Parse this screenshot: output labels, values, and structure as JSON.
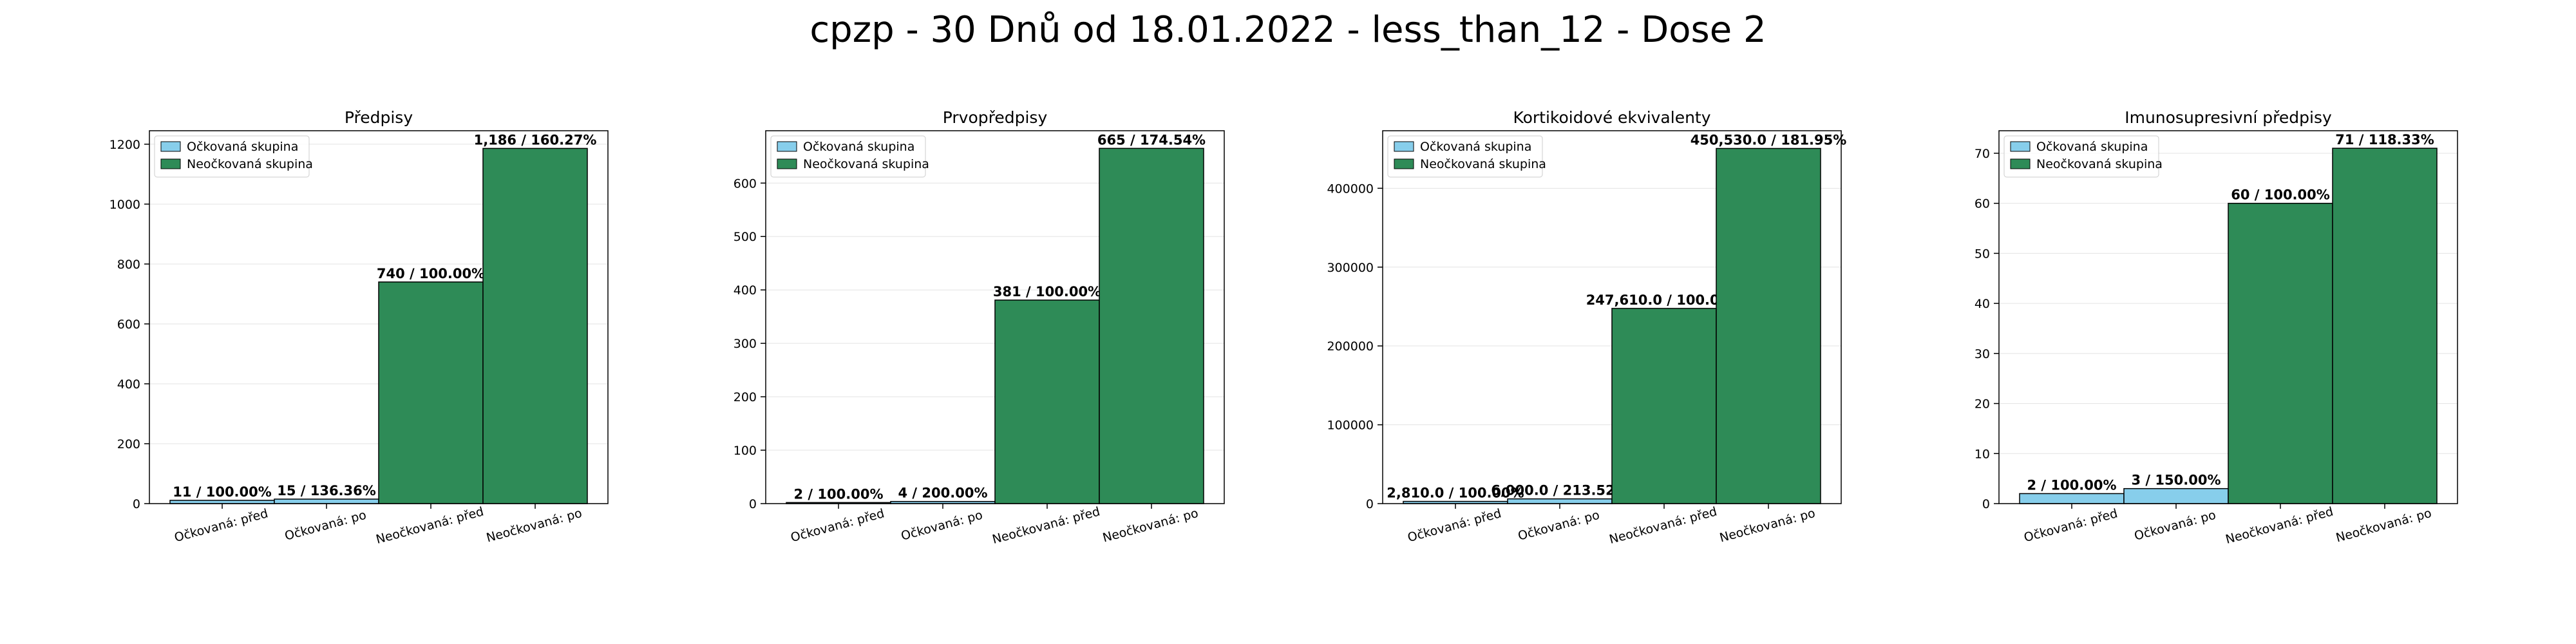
{
  "figure": {
    "suptitle": "cpzp - 30 Dnů od 18.01.2022 - less_than_12 - Dose 2",
    "colors": {
      "vaccinated": "#87ceeb",
      "unvaccinated": "#2e8b57"
    }
  },
  "chart_data": [
    {
      "type": "bar",
      "title": "Předpisy",
      "categories": [
        "Očkovaná: před",
        "Očkovaná: po",
        "Neočkovaná: před",
        "Neočkovaná: po"
      ],
      "groups": [
        "Očkovaná skupina",
        "Očkovaná skupina",
        "Neočkovaná skupina",
        "Neočkovaná skupina"
      ],
      "values": [
        11,
        15,
        740,
        1186
      ],
      "labels": [
        "11 / 100.00%",
        "15 / 136.36%",
        "740 / 100.00%",
        "1,186 / 160.27%"
      ],
      "legend": [
        "Očkovaná skupina",
        "Neočkovaná skupina"
      ],
      "legend_position": "upper-left",
      "ylim": [
        0,
        1245
      ],
      "yticks": [
        0,
        200,
        400,
        600,
        800,
        1000,
        1200
      ],
      "ytick_labels": [
        "0",
        "200",
        "400",
        "600",
        "800",
        "1000",
        "1200"
      ],
      "grid": "y"
    },
    {
      "type": "bar",
      "title": "Prvopředpisy",
      "categories": [
        "Očkovaná: před",
        "Očkovaná: po",
        "Neočkovaná: před",
        "Neočkovaná: po"
      ],
      "groups": [
        "Očkovaná skupina",
        "Očkovaná skupina",
        "Neočkovaná skupina",
        "Neočkovaná skupina"
      ],
      "values": [
        2,
        4,
        381,
        665
      ],
      "labels": [
        "2 / 100.00%",
        "4 / 200.00%",
        "381 / 100.00%",
        "665 / 174.54%"
      ],
      "legend": [
        "Očkovaná skupina",
        "Neočkovaná skupina"
      ],
      "legend_position": "upper-left",
      "ylim": [
        0,
        698
      ],
      "yticks": [
        0,
        100,
        200,
        300,
        400,
        500,
        600
      ],
      "ytick_labels": [
        "0",
        "100",
        "200",
        "300",
        "400",
        "500",
        "600"
      ],
      "grid": "y"
    },
    {
      "type": "bar",
      "title": "Kortikoidové ekvivalenty",
      "categories": [
        "Očkovaná: před",
        "Očkovaná: po",
        "Neočkovaná: před",
        "Neočkovaná: po"
      ],
      "groups": [
        "Očkovaná skupina",
        "Očkovaná skupina",
        "Neočkovaná skupina",
        "Neočkovaná skupina"
      ],
      "values": [
        2810.0,
        6000.0,
        247610.0,
        450530.0
      ],
      "labels": [
        "2,810.0 / 100.00%",
        "6,000.0 / 213.52%",
        "247,610.0 / 100.00%",
        "450,530.0 / 181.95%"
      ],
      "legend": [
        "Očkovaná skupina",
        "Neočkovaná skupina"
      ],
      "legend_position": "upper-left",
      "ylim": [
        0,
        473000
      ],
      "yticks": [
        0,
        100000,
        200000,
        300000,
        400000
      ],
      "ytick_labels": [
        "0",
        "100000",
        "200000",
        "300000",
        "400000"
      ],
      "grid": "y"
    },
    {
      "type": "bar",
      "title": "Imunosupresivní předpisy",
      "categories": [
        "Očkovaná: před",
        "Očkovaná: po",
        "Neočkovaná: před",
        "Neočkovaná: po"
      ],
      "groups": [
        "Očkovaná skupina",
        "Očkovaná skupina",
        "Neočkovaná skupina",
        "Neočkovaná skupina"
      ],
      "values": [
        2,
        3,
        60,
        71
      ],
      "labels": [
        "2 / 100.00%",
        "3 / 150.00%",
        "60 / 100.00%",
        "71 / 118.33%"
      ],
      "legend": [
        "Očkovaná skupina",
        "Neočkovaná skupina"
      ],
      "legend_position": "upper-left",
      "ylim": [
        0,
        74.5
      ],
      "yticks": [
        0,
        10,
        20,
        30,
        40,
        50,
        60,
        70
      ],
      "ytick_labels": [
        "0",
        "10",
        "20",
        "30",
        "40",
        "50",
        "60",
        "70"
      ],
      "grid": "y"
    }
  ]
}
